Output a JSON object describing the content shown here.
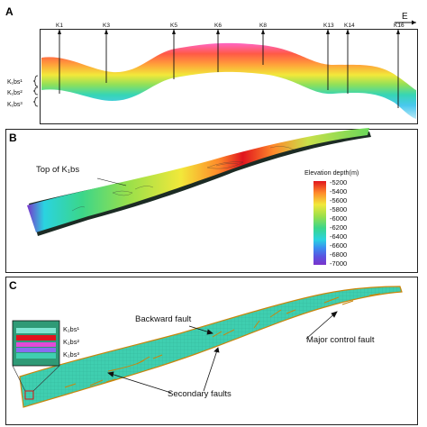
{
  "panelA": {
    "label": "A",
    "wells": [
      "K1",
      "K3",
      "K5",
      "K6",
      "K8",
      "K13",
      "K14",
      "K16"
    ],
    "direction": "E",
    "zones": [
      "K₁bs¹",
      "K₁bs²",
      "K₁bs³"
    ]
  },
  "panelB": {
    "label": "B",
    "surface_label": "Top of K₁bs",
    "legend_title": "Elevation  depth(m)",
    "legend_ticks": [
      "-5200",
      "-5400",
      "-5600",
      "-5800",
      "-6000",
      "-6200",
      "-6400",
      "-6600",
      "-6800",
      "-7000"
    ],
    "colors": {
      "shallow": "#e0141e",
      "deep": "#7a33cc"
    }
  },
  "panelC": {
    "label": "C",
    "inset_zones": [
      "K₁bs¹",
      "K₁bs²",
      "K₁bs³"
    ],
    "annotations": {
      "backward_fault": "Backward fault",
      "major_control_fault": "Major control fault",
      "secondary_faults": "Secondary faults"
    },
    "colors": {
      "model": "#3fcfb0",
      "fault": "#c8860c"
    }
  }
}
